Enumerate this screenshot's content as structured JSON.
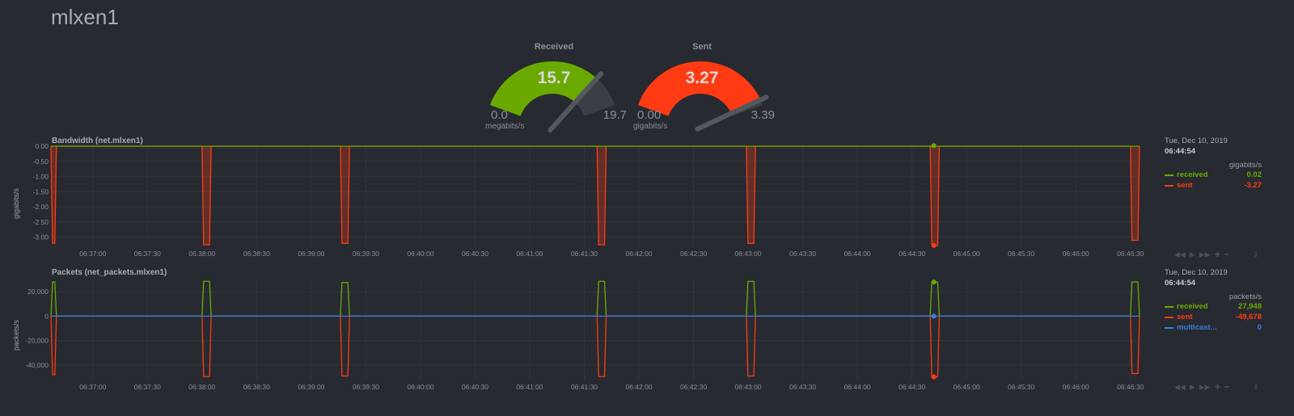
{
  "page": {
    "title": "mlxen1"
  },
  "gauges": [
    {
      "title": "Received",
      "value": "15.7",
      "min": "0.0",
      "max": "19.7",
      "unit": "megabits/s",
      "fraction": 0.8,
      "color": "#6aaa00"
    },
    {
      "title": "Sent",
      "value": "3.27",
      "min": "0.00",
      "max": "3.39",
      "unit": "gigabits/s",
      "fraction": 0.965,
      "color": "#ff3b14"
    }
  ],
  "colors": {
    "received": "#6aaa00",
    "sent": "#ff3b14",
    "multicast": "#3a7ee0",
    "background": "#272a30"
  },
  "x_ticks": [
    "06:37:00",
    "06:37:30",
    "06:38:00",
    "06:38:30",
    "06:39:00",
    "06:39:30",
    "06:40:00",
    "06:40:30",
    "06:41:00",
    "06:41:30",
    "06:42:00",
    "06:42:30",
    "06:43:00",
    "06:43:30",
    "06:44:00",
    "06:44:30",
    "06:45:00",
    "06:45:30",
    "06:46:00",
    "06:46:30"
  ],
  "toolbar": {
    "icons": [
      "rewind-icon",
      "play-icon",
      "fast-forward-icon",
      "zoom-in-icon",
      "zoom-out-icon"
    ],
    "glyphs": [
      "◀◀",
      "▶",
      "▶▶",
      "✚",
      "━"
    ],
    "resize_glyph": "⇕"
  },
  "charts": {
    "bandwidth": {
      "title": "Bandwidth (net.mlxen1)",
      "ylabel": "gigabits/s",
      "y_ticks": [
        "0.00",
        "-0.50",
        "-1.00",
        "-1.50",
        "-2.00",
        "-2.50",
        "-3.00"
      ],
      "legend": {
        "date": "Tue, Dec 10, 2019",
        "time": "06:44:54",
        "units": "gigabits/s",
        "rows": [
          {
            "name": "received",
            "value": "0.02"
          },
          {
            "name": "sent",
            "value": "-3.27"
          }
        ]
      }
    },
    "packets": {
      "title": "Packets (net_packets.mlxen1)",
      "ylabel": "packets/s",
      "y_ticks": [
        "20,000",
        "0",
        "-20,000",
        "-40,000"
      ],
      "legend": {
        "date": "Tue, Dec 10, 2019",
        "time": "06:44:54",
        "units": "packets/s",
        "rows": [
          {
            "name": "received",
            "value": "27,948"
          },
          {
            "name": "sent",
            "value": "-49,678"
          },
          {
            "name": "multicast...",
            "value": "0"
          }
        ]
      }
    }
  },
  "chart_data": [
    {
      "type": "area",
      "title": "Bandwidth (net.mlxen1)",
      "ylabel": "gigabits/s",
      "ylim": [
        -3.3,
        0
      ],
      "x_range": [
        "06:36:37",
        "06:46:35"
      ],
      "bursts": [
        {
          "start": "06:36:37",
          "end": "06:36:40",
          "sent": -3.2
        },
        {
          "start": "06:38:00",
          "end": "06:38:05",
          "sent": -3.25
        },
        {
          "start": "06:39:16",
          "end": "06:39:21",
          "sent": -3.2
        },
        {
          "start": "06:41:37",
          "end": "06:41:42",
          "sent": -3.25
        },
        {
          "start": "06:42:59",
          "end": "06:43:04",
          "sent": -3.2
        },
        {
          "start": "06:44:40",
          "end": "06:44:45",
          "sent": -3.27
        },
        {
          "start": "06:46:30",
          "end": "06:46:35",
          "sent": -3.1
        }
      ],
      "series": [
        {
          "name": "received",
          "baseline": 0.02
        },
        {
          "name": "sent",
          "baseline": 0
        }
      ]
    },
    {
      "type": "line",
      "title": "Packets (net_packets.mlxen1)",
      "ylabel": "packets/s",
      "ylim": [
        -52000,
        30000
      ],
      "x_range": [
        "06:36:37",
        "06:46:35"
      ],
      "bursts": [
        {
          "start": "06:36:37",
          "end": "06:36:40",
          "received": 28000,
          "sent": -48000
        },
        {
          "start": "06:38:00",
          "end": "06:38:05",
          "received": 28500,
          "sent": -49500
        },
        {
          "start": "06:39:16",
          "end": "06:39:21",
          "received": 27500,
          "sent": -49000
        },
        {
          "start": "06:41:37",
          "end": "06:41:42",
          "received": 28500,
          "sent": -49500
        },
        {
          "start": "06:42:59",
          "end": "06:43:04",
          "received": 28500,
          "sent": -49000
        },
        {
          "start": "06:44:40",
          "end": "06:44:45",
          "received": 27948,
          "sent": -49678
        },
        {
          "start": "06:46:30",
          "end": "06:46:35",
          "received": 28000,
          "sent": -47000
        }
      ],
      "series": [
        {
          "name": "received",
          "baseline": 0
        },
        {
          "name": "sent",
          "baseline": 0
        },
        {
          "name": "multicast...",
          "baseline": 0
        }
      ]
    }
  ]
}
